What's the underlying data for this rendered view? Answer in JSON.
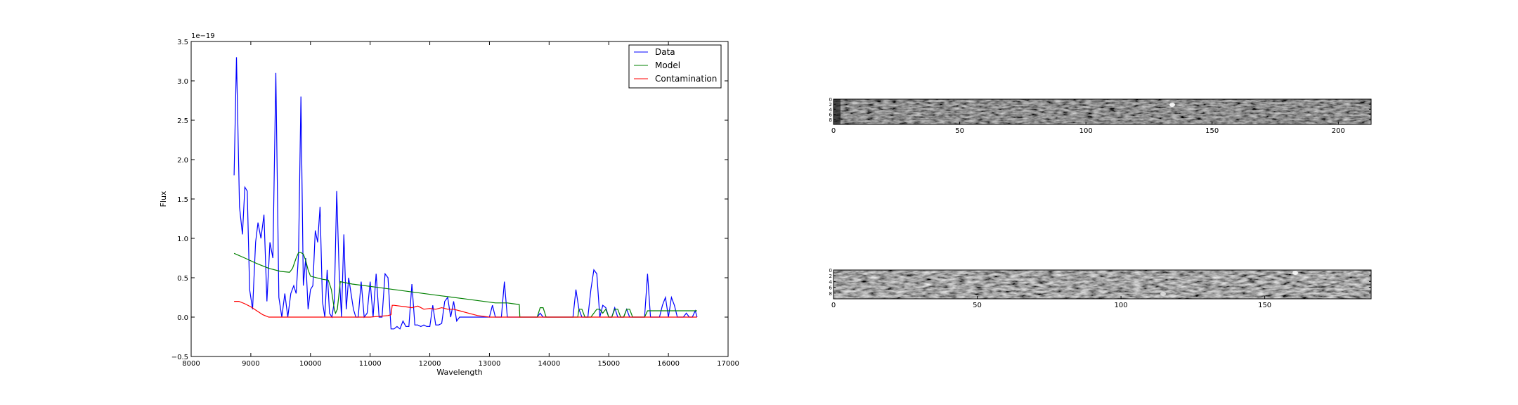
{
  "chart_data": [
    {
      "type": "line",
      "xlabel": "Wavelength",
      "ylabel": "Flux",
      "offset_text": "1e−19",
      "xlim": [
        8000,
        17000
      ],
      "ylim": [
        -0.5,
        3.5
      ],
      "xticks": [
        8000,
        9000,
        10000,
        11000,
        12000,
        13000,
        14000,
        15000,
        16000,
        17000
      ],
      "yticks": [
        -0.5,
        0.0,
        0.5,
        1.0,
        1.5,
        2.0,
        2.5,
        3.0,
        3.5
      ],
      "legend_position": "top-right",
      "grid": false,
      "series": [
        {
          "name": "Data",
          "color": "#0000ff",
          "x": [
            8720,
            8760,
            8810,
            8860,
            8900,
            8940,
            8980,
            9030,
            9080,
            9120,
            9170,
            9220,
            9270,
            9320,
            9370,
            9420,
            9470,
            9520,
            9570,
            9620,
            9670,
            9720,
            9760,
            9800,
            9840,
            9880,
            9920,
            9960,
            10000,
            10040,
            10080,
            10120,
            10160,
            10200,
            10240,
            10280,
            10320,
            10360,
            10400,
            10440,
            10480,
            10520,
            10560,
            10600,
            10640,
            10680,
            10720,
            10760,
            10800,
            10850,
            10900,
            10950,
            11000,
            11050,
            11100,
            11150,
            11200,
            11250,
            11300,
            11350,
            11400,
            11450,
            11500,
            11550,
            11600,
            11650,
            11700,
            11750,
            11800,
            11850,
            11900,
            11950,
            12000,
            12050,
            12100,
            12150,
            12200,
            12250,
            12300,
            12350,
            12400,
            12450,
            12500,
            12550,
            12600,
            12650,
            12700,
            12800,
            12900,
            13000,
            13050,
            13100,
            13200,
            13250,
            13300,
            13350,
            13400,
            13500,
            13600,
            13700,
            13800,
            13850,
            13900,
            14000,
            14100,
            14200,
            14300,
            14400,
            14450,
            14500,
            14550,
            14600,
            14650,
            14700,
            14750,
            14800,
            14850,
            14900,
            14950,
            15000,
            15050,
            15100,
            15150,
            15200,
            15250,
            15300,
            15350,
            15400,
            15450,
            15500,
            15550,
            15600,
            15650,
            15700,
            15750,
            15800,
            15850,
            15900,
            15950,
            16000,
            16050,
            16100,
            16150,
            16200,
            16250,
            16300,
            16350,
            16400,
            16450,
            16480
          ],
          "values": [
            1.8,
            3.3,
            1.4,
            1.05,
            1.65,
            1.6,
            0.35,
            0.1,
            0.95,
            1.2,
            1.0,
            1.3,
            0.2,
            0.95,
            0.75,
            3.1,
            0.25,
            0.0,
            0.3,
            0.0,
            0.3,
            0.4,
            0.3,
            0.8,
            2.8,
            0.4,
            0.75,
            0.1,
            0.35,
            0.4,
            1.1,
            0.95,
            1.4,
            0.2,
            0.0,
            0.6,
            0.05,
            0.0,
            0.2,
            1.6,
            0.6,
            0.0,
            1.05,
            0.1,
            0.5,
            0.3,
            0.1,
            0.0,
            0.0,
            0.45,
            0.0,
            0.05,
            0.45,
            0.0,
            0.55,
            0.0,
            0.0,
            0.55,
            0.5,
            -0.15,
            -0.15,
            -0.12,
            -0.15,
            -0.05,
            -0.12,
            -0.12,
            0.42,
            -0.1,
            -0.1,
            -0.12,
            -0.1,
            -0.12,
            -0.12,
            0.15,
            -0.1,
            -0.1,
            -0.08,
            0.2,
            0.25,
            0.0,
            0.2,
            -0.05,
            0.0,
            0.0,
            0.0,
            0.0,
            0.0,
            0.0,
            0.0,
            0.0,
            0.15,
            0.0,
            0.0,
            0.45,
            0.0,
            0.0,
            0.0,
            0.0,
            0.0,
            0.0,
            0.0,
            0.05,
            0.0,
            0.0,
            0.0,
            0.0,
            0.0,
            0.0,
            0.35,
            0.1,
            0.0,
            0.0,
            0.0,
            0.35,
            0.6,
            0.55,
            0.0,
            0.15,
            0.12,
            0.0,
            0.0,
            0.12,
            0.0,
            0.0,
            0.0,
            0.1,
            0.0,
            0.0,
            0.0,
            0.0,
            0.0,
            0.0,
            0.55,
            0.0,
            0.0,
            0.0,
            0.0,
            0.15,
            0.25,
            0.0,
            0.25,
            0.15,
            0.0,
            0.0,
            0.0,
            0.05,
            0.0,
            0.0,
            0.08,
            0.0
          ]
        },
        {
          "name": "Model",
          "color": "#008000",
          "x": [
            8720,
            8900,
            9100,
            9300,
            9500,
            9650,
            9700,
            9760,
            9800,
            9840,
            9880,
            9920,
            9960,
            10000,
            10200,
            10300,
            10350,
            10400,
            10420,
            10450,
            10500,
            10700,
            11000,
            11400,
            11800,
            12200,
            12600,
            13000,
            13100,
            13300,
            13400,
            13500,
            13510,
            13700,
            13800,
            13850,
            13900,
            13950,
            14000,
            14400,
            14480,
            14500,
            14550,
            14600,
            14700,
            14800,
            14850,
            14900,
            14950,
            15000,
            15050,
            15100,
            15150,
            15200,
            15250,
            15300,
            15350,
            15400,
            15500,
            15600,
            15650,
            15700,
            15800,
            15900,
            16000,
            16100,
            16200,
            16300,
            16400,
            16480
          ],
          "values": [
            0.81,
            0.75,
            0.68,
            0.62,
            0.58,
            0.57,
            0.62,
            0.75,
            0.82,
            0.82,
            0.8,
            0.72,
            0.6,
            0.52,
            0.48,
            0.47,
            0.35,
            0.1,
            0.05,
            0.1,
            0.45,
            0.42,
            0.39,
            0.35,
            0.31,
            0.27,
            0.23,
            0.19,
            0.18,
            0.18,
            0.17,
            0.16,
            0.0,
            0.0,
            0.0,
            0.12,
            0.12,
            0.0,
            0.0,
            0.0,
            0.0,
            0.1,
            0.1,
            0.0,
            0.0,
            0.1,
            0.1,
            0.05,
            0.1,
            0.0,
            0.0,
            0.1,
            0.1,
            0.0,
            0.0,
            0.1,
            0.1,
            0.0,
            0.0,
            0.0,
            0.08,
            0.08,
            0.08,
            0.08,
            0.08,
            0.08,
            0.08,
            0.08,
            0.08,
            0.08
          ]
        },
        {
          "name": "Contamination",
          "color": "#ff0000",
          "x": [
            8720,
            8800,
            8900,
            9000,
            9100,
            9200,
            9300,
            9400,
            9500,
            10000,
            10500,
            11000,
            11300,
            11350,
            11370,
            11400,
            11500,
            11600,
            11700,
            11800,
            11900,
            12000,
            12100,
            12200,
            12300,
            12400,
            12500,
            12600,
            12800,
            13000,
            13500,
            14000,
            14500,
            15000,
            15500,
            16000,
            16480
          ],
          "values": [
            0.2,
            0.2,
            0.17,
            0.13,
            0.08,
            0.03,
            0.0,
            0.0,
            0.0,
            0.0,
            0.0,
            0.0,
            0.02,
            0.03,
            0.15,
            0.15,
            0.14,
            0.13,
            0.12,
            0.14,
            0.1,
            0.11,
            0.1,
            0.12,
            0.1,
            0.1,
            0.08,
            0.06,
            0.02,
            0.0,
            0.0,
            0.0,
            0.0,
            0.0,
            0.0,
            0.0,
            0.0
          ]
        }
      ]
    },
    {
      "type": "heatmap",
      "colormap": "gray",
      "xlim": [
        0,
        213
      ],
      "ylim": [
        0,
        10
      ],
      "xticks": [
        0,
        50,
        100,
        150,
        200
      ],
      "yticks": [
        0,
        2,
        4,
        6,
        8
      ]
    },
    {
      "type": "heatmap",
      "colormap": "gray",
      "xlim": [
        0,
        187
      ],
      "ylim": [
        0,
        10
      ],
      "xticks": [
        0,
        50,
        100,
        150
      ],
      "yticks": [
        0,
        2,
        4,
        6,
        8
      ]
    }
  ]
}
